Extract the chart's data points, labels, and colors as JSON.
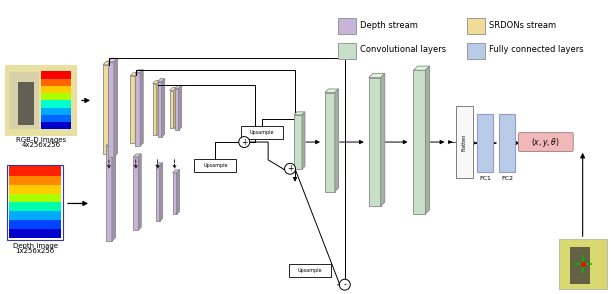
{
  "bg_color": "#ffffff",
  "depth_color": "#c8b4d8",
  "srdons_color": "#f0dc96",
  "conv_color": "#c8dfc8",
  "fc_color": "#b8cce8",
  "out_color": "#f0b8b8",
  "flat_color": "#f8f8f8",
  "legend": [
    {
      "label": "Depth stream",
      "color": "#c8b4d8"
    },
    {
      "label": "SRDONs stream",
      "color": "#f0dc96"
    },
    {
      "label": "Convolutional layers",
      "color": "#c8dfc8"
    },
    {
      "label": "Fully connected layers",
      "color": "#b8cce8"
    }
  ]
}
